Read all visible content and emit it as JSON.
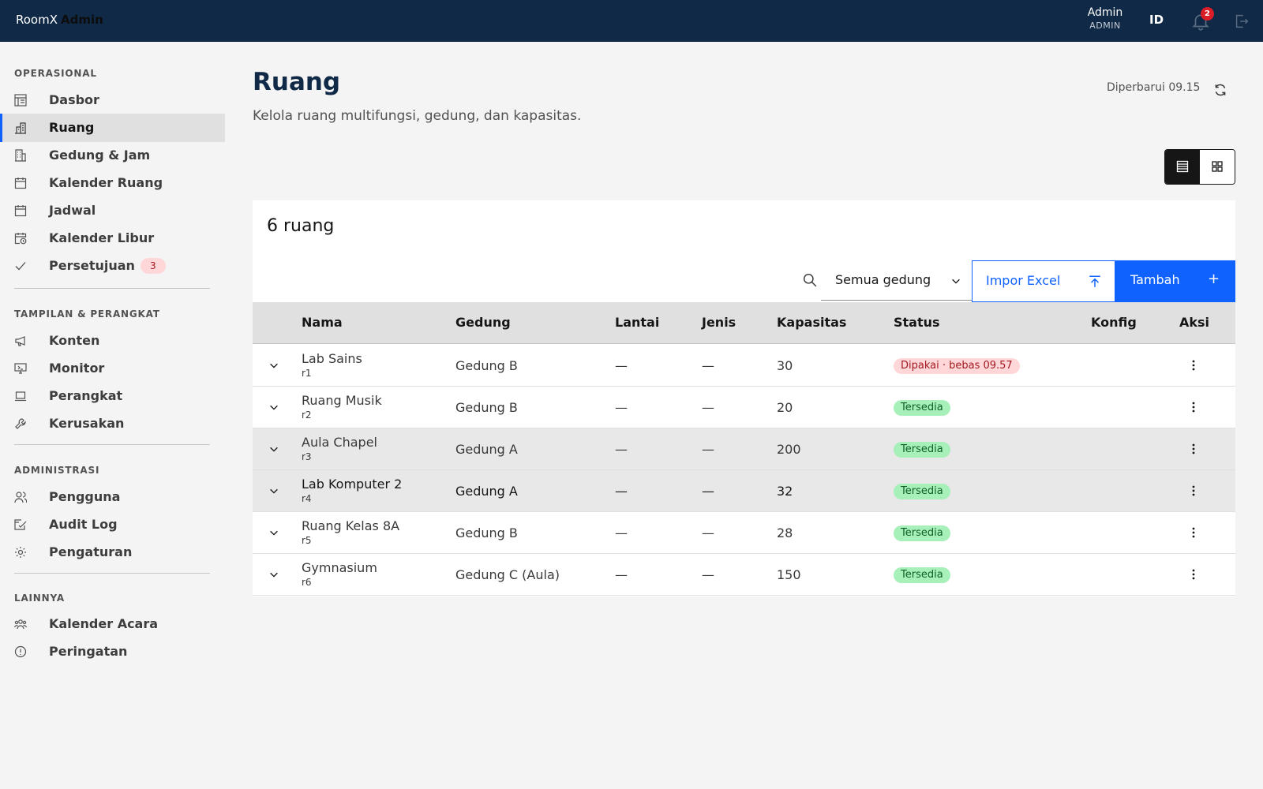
{
  "topbar": {
    "brand_main": "RoomX",
    "brand_sub": "Admin",
    "user_name": "Admin",
    "user_role": "ADMIN",
    "lang": "ID",
    "notif_count": "2"
  },
  "sidebar": {
    "sections": [
      {
        "title": "OPERASIONAL",
        "items": [
          {
            "label": "Dasbor",
            "icon": "dashboard-icon"
          },
          {
            "label": "Ruang",
            "icon": "building-icon",
            "active": true
          },
          {
            "label": "Gedung & Jam",
            "icon": "building-icon"
          },
          {
            "label": "Kalender Ruang",
            "icon": "calendar-icon"
          },
          {
            "label": "Jadwal",
            "icon": "calendar-icon"
          },
          {
            "label": "Kalender Libur",
            "icon": "calendar-clock-icon"
          },
          {
            "label": "Persetujuan",
            "icon": "checkmark-icon",
            "badge": "3"
          }
        ]
      },
      {
        "title": "TAMPILAN & PERANGKAT",
        "items": [
          {
            "label": "Konten",
            "icon": "megaphone-icon"
          },
          {
            "label": "Monitor",
            "icon": "monitor-icon"
          },
          {
            "label": "Perangkat",
            "icon": "laptop-icon"
          },
          {
            "label": "Kerusakan",
            "icon": "wrench-icon"
          }
        ]
      },
      {
        "title": "ADMINISTRASI",
        "items": [
          {
            "label": "Pengguna",
            "icon": "users-icon"
          },
          {
            "label": "Audit Log",
            "icon": "audit-icon"
          },
          {
            "label": "Pengaturan",
            "icon": "gear-icon"
          }
        ]
      },
      {
        "title": "LAINNYA",
        "items": [
          {
            "label": "Kalender Acara",
            "icon": "group-icon"
          },
          {
            "label": "Peringatan",
            "icon": "warning-icon"
          }
        ]
      }
    ]
  },
  "page": {
    "title": "Ruang",
    "subtitle": "Kelola ruang multifungsi, gedung, dan kapasitas.",
    "updated": "Diperbarui 09.15"
  },
  "card": {
    "title": "6 ruang",
    "building_filter": "Semua gedung",
    "import_label": "Impor Excel",
    "add_label": "Tambah",
    "add_symbol": "+"
  },
  "table": {
    "headers": {
      "name": "Nama",
      "building": "Gedung",
      "floor": "Lantai",
      "type": "Jenis",
      "capacity": "Kapasitas",
      "status": "Status",
      "config": "Konfig",
      "actions": "Aksi"
    },
    "rows": [
      {
        "name": "Lab Sains",
        "code": "r1",
        "building": "Gedung B",
        "floor": "—",
        "type": "—",
        "capacity": "30",
        "status": "Dipakai · bebas 09.57",
        "status_kind": "busy",
        "highlight": false,
        "dark": false
      },
      {
        "name": "Ruang Musik",
        "code": "r2",
        "building": "Gedung B",
        "floor": "—",
        "type": "—",
        "capacity": "20",
        "status": "Tersedia",
        "status_kind": "free",
        "highlight": false,
        "dark": false
      },
      {
        "name": "Aula Chapel",
        "code": "r3",
        "building": "Gedung A",
        "floor": "—",
        "type": "—",
        "capacity": "200",
        "status": "Tersedia",
        "status_kind": "free",
        "highlight": true,
        "dark": false
      },
      {
        "name": "Lab Komputer 2",
        "code": "r4",
        "building": "Gedung A",
        "floor": "—",
        "type": "—",
        "capacity": "32",
        "status": "Tersedia",
        "status_kind": "free",
        "highlight": true,
        "dark": true
      },
      {
        "name": "Ruang Kelas 8A",
        "code": "r5",
        "building": "Gedung B",
        "floor": "—",
        "type": "—",
        "capacity": "28",
        "status": "Tersedia",
        "status_kind": "free",
        "highlight": false,
        "dark": false
      },
      {
        "name": "Gymnasium",
        "code": "r6",
        "building": "Gedung C (Aula)",
        "floor": "—",
        "type": "—",
        "capacity": "150",
        "status": "Tersedia",
        "status_kind": "free",
        "highlight": false,
        "dark": false
      }
    ]
  },
  "colors": {
    "topbar": "#0f2947",
    "accent": "#0f62fe",
    "busy_bg": "#ffd7d9",
    "free_bg": "#a7f0ba"
  }
}
